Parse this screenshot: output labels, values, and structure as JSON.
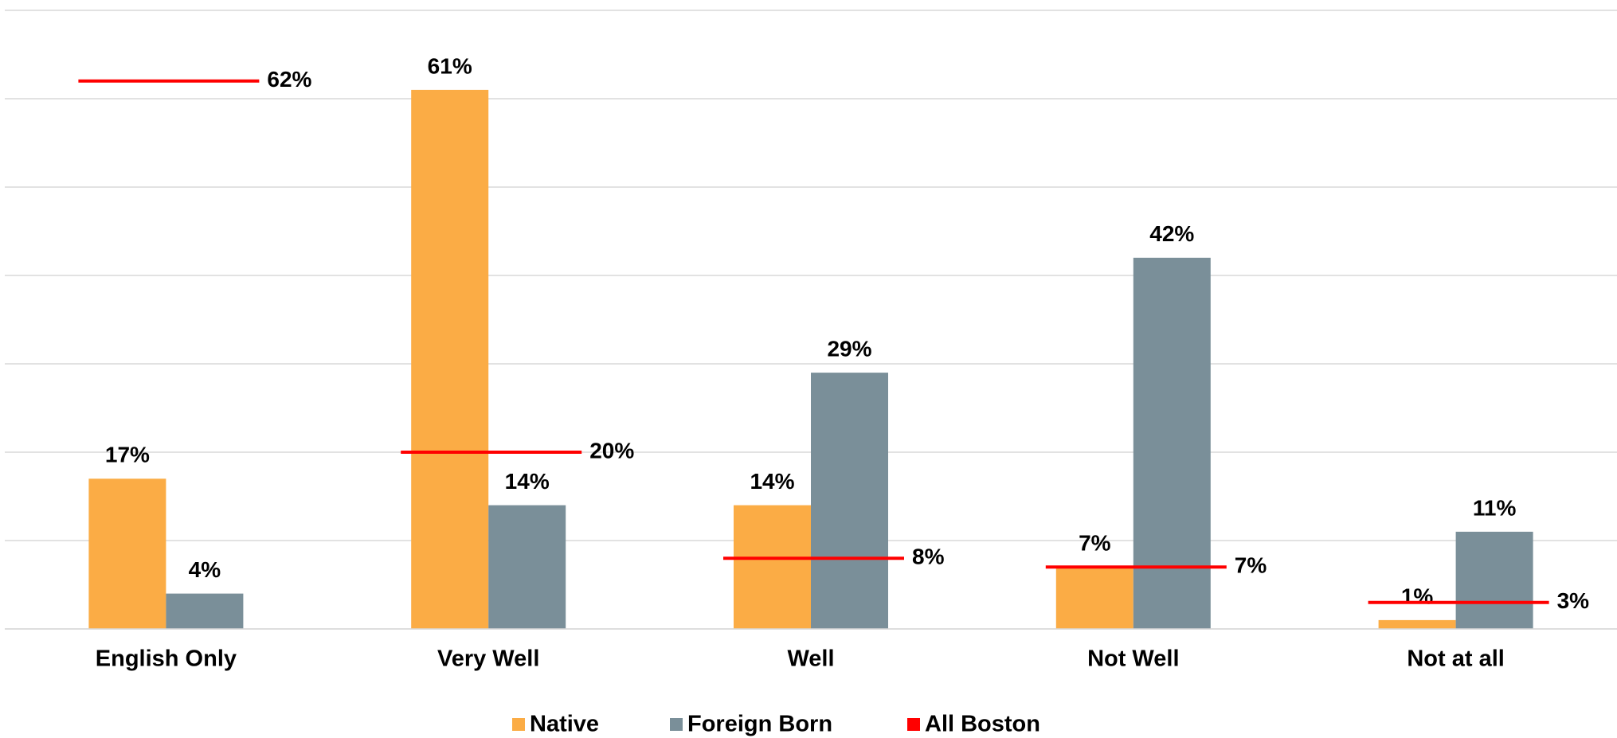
{
  "chart_data": {
    "type": "bar",
    "categories": [
      "English Only",
      "Very Well",
      "Well",
      "Not Well",
      "Not at all"
    ],
    "series": [
      {
        "name": "Native",
        "color": "#fbac45",
        "values": [
          17,
          61,
          14,
          7,
          1
        ],
        "value_labels": [
          "17%",
          "61%",
          "14%",
          "7%",
          "1%"
        ]
      },
      {
        "name": "Foreign Born",
        "color": "#7a8f99",
        "values": [
          4,
          14,
          29,
          42,
          11
        ],
        "value_labels": [
          "4%",
          "14%",
          "29%",
          "42%",
          "11%"
        ]
      },
      {
        "name": "All Boston",
        "type": "marker-line",
        "color": "#ff0000",
        "values": [
          62,
          20,
          8,
          7,
          3
        ],
        "value_labels": [
          "62%",
          "20%",
          "8%",
          "7%",
          "3%"
        ]
      }
    ],
    "ylim": [
      0,
      70
    ],
    "yticks": [
      0,
      10,
      20,
      30,
      40,
      50,
      60,
      70
    ],
    "grid": true,
    "legend": "bottom"
  }
}
